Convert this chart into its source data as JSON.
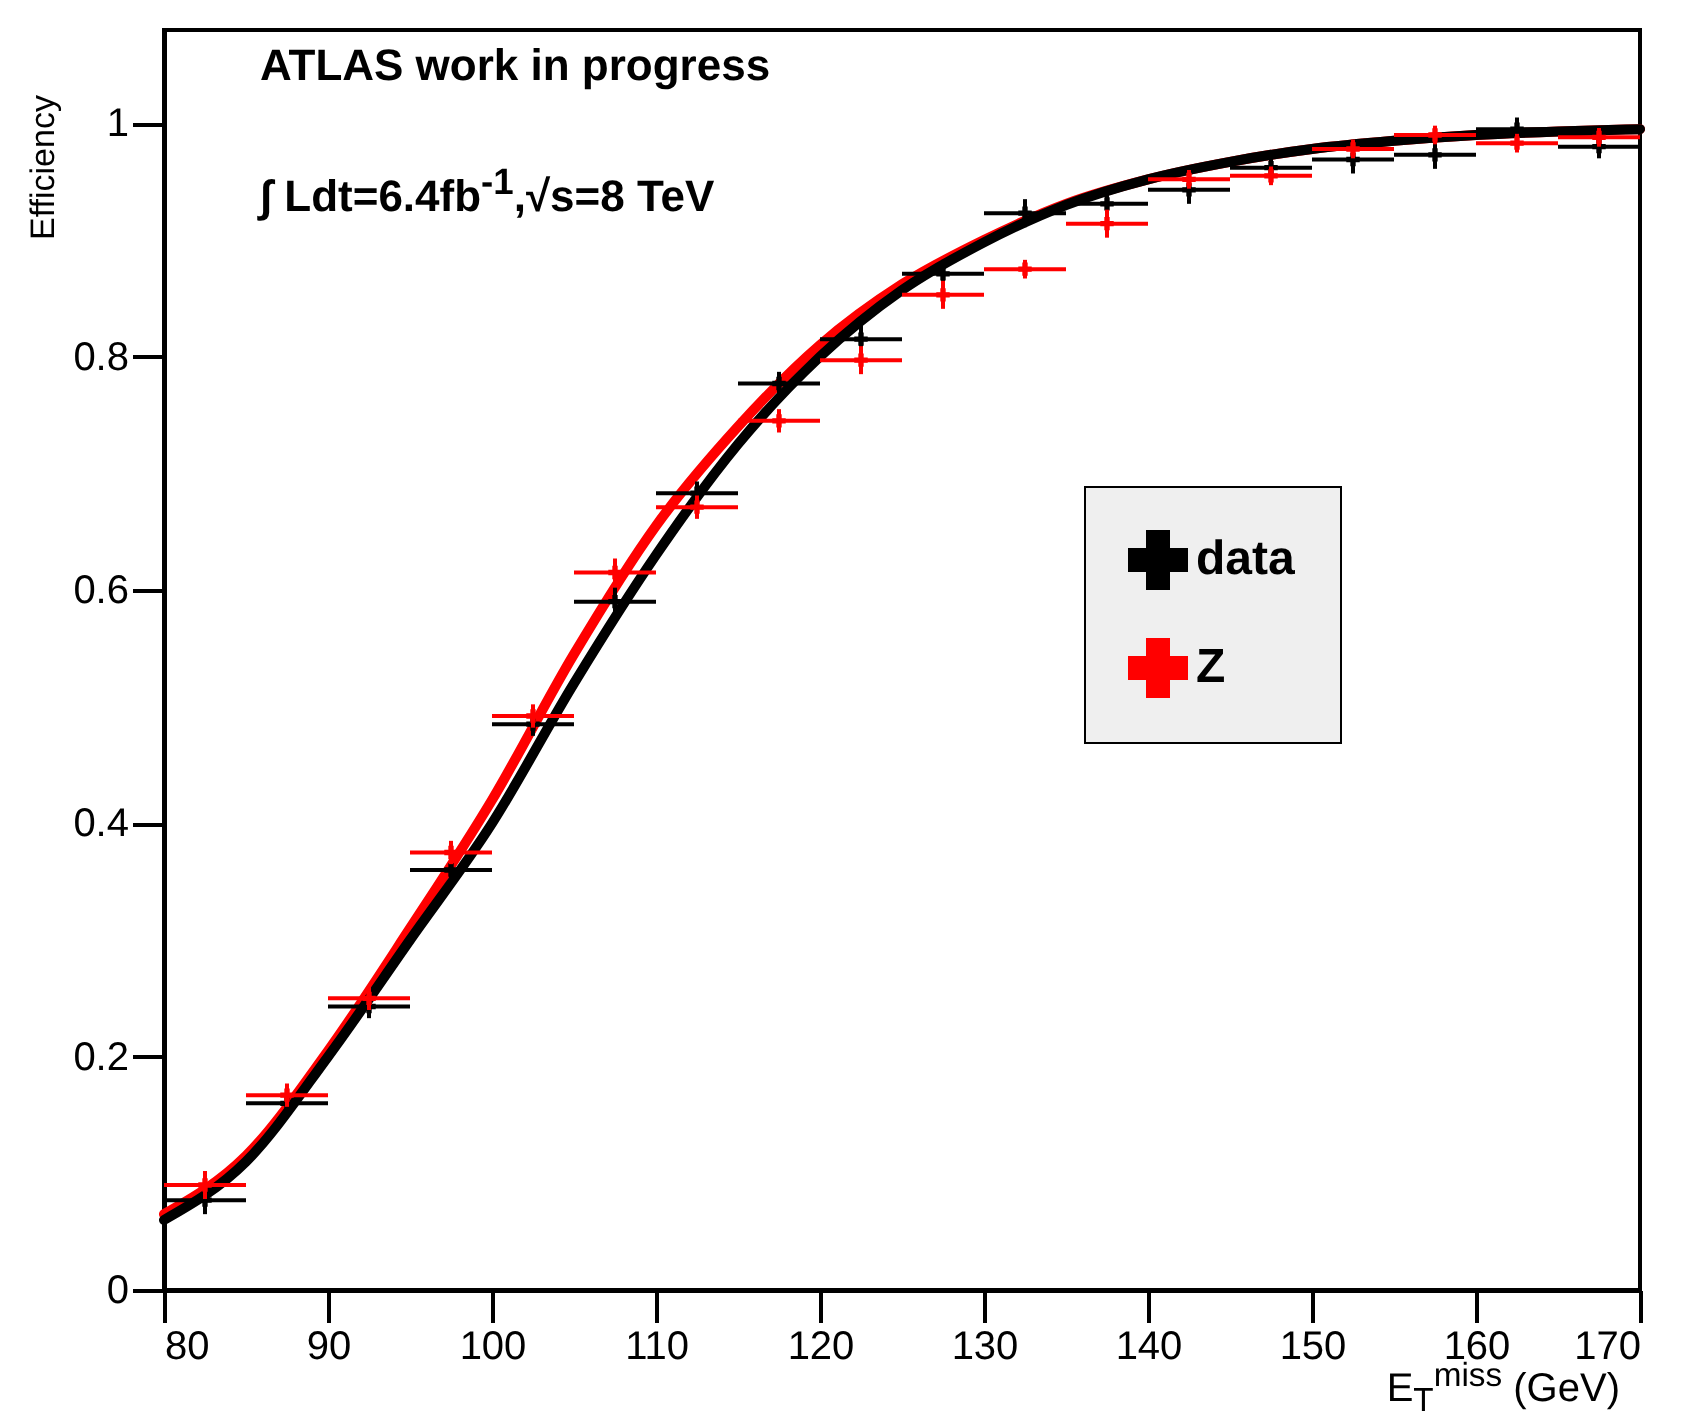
{
  "chart_data": {
    "type": "scatter",
    "xlabel": "E$_{T}$$^{miss}$ (GeV)",
    "ylabel": "Efficiency",
    "annotations": [
      "ATLAS work in progress",
      "∫ Ldt=6.4fb$^{-1}$,√s=8 TeV"
    ],
    "xlim": [
      80,
      170
    ],
    "ylim": [
      0,
      1.08
    ],
    "xticks": [
      80,
      90,
      100,
      110,
      120,
      130,
      140,
      150,
      160,
      170
    ],
    "yticks": [
      0,
      0.2,
      0.4,
      0.6,
      0.8,
      1
    ],
    "grid": false,
    "legend": "right",
    "x": [
      82.5,
      87.5,
      92.5,
      97.5,
      102.5,
      107.5,
      112.5,
      117.5,
      122.5,
      127.5,
      132.5,
      137.5,
      142.5,
      147.5,
      152.5,
      157.5,
      162.5,
      167.5
    ],
    "series": [
      {
        "name": "data",
        "color": "#000000",
        "marker": "cross",
        "values": [
          0.077,
          0.16,
          0.243,
          0.36,
          0.485,
          0.59,
          0.683,
          0.777,
          0.815,
          0.871,
          0.923,
          0.931,
          0.943,
          0.962,
          0.969,
          0.973,
          0.995,
          0.98
        ],
        "errors": [
          0.012,
          0.01,
          0.01,
          0.01,
          0.01,
          0.012,
          0.01,
          0.01,
          0.012,
          0.012,
          0.012,
          0.012,
          0.012,
          0.012,
          0.012,
          0.012,
          0.01,
          0.01
        ],
        "xerrors": [
          2.5,
          2.5,
          2.5,
          2.5,
          2.5,
          2.5,
          2.5,
          2.5,
          2.5,
          2.5,
          2.5,
          2.5,
          2.5,
          2.5,
          2.5,
          2.5,
          2.5,
          2.5
        ]
      },
      {
        "name": "Z",
        "color": "#ff0000",
        "marker": "cross",
        "values": [
          0.09,
          0.167,
          0.25,
          0.375,
          0.492,
          0.615,
          0.671,
          0.745,
          0.797,
          0.853,
          0.875,
          0.914,
          0.952,
          0.955,
          0.978,
          0.99,
          0.983,
          0.988
        ],
        "errors": [
          0.012,
          0.01,
          0.01,
          0.01,
          0.01,
          0.012,
          0.01,
          0.01,
          0.012,
          0.012,
          0.008,
          0.012,
          0.008,
          0.008,
          0.008,
          0.008,
          0.008,
          0.008
        ],
        "xerrors": [
          2.5,
          2.5,
          2.5,
          2.5,
          2.5,
          2.5,
          2.5,
          2.5,
          2.5,
          2.5,
          2.5,
          2.5,
          2.5,
          2.5,
          2.5,
          2.5,
          2.5,
          2.5
        ]
      },
      {
        "type": "line",
        "color": "#000000",
        "x": [
          80,
          85,
          90,
          95,
          100,
          105,
          110,
          115,
          120,
          125,
          130,
          135,
          140,
          145,
          150,
          155,
          160,
          165,
          170
        ],
        "values": [
          0.06,
          0.11,
          0.2,
          0.3,
          0.4,
          0.52,
          0.63,
          0.725,
          0.8,
          0.857,
          0.898,
          0.93,
          0.952,
          0.967,
          0.978,
          0.985,
          0.99,
          0.993,
          0.995
        ]
      },
      {
        "type": "line",
        "color": "#ff0000",
        "x": [
          80,
          85,
          90,
          95,
          100,
          105,
          110,
          115,
          120,
          125,
          130,
          135,
          140,
          145,
          150,
          155,
          160,
          165,
          170
        ],
        "values": [
          0.065,
          0.115,
          0.205,
          0.31,
          0.42,
          0.545,
          0.655,
          0.74,
          0.81,
          0.862,
          0.9,
          0.931,
          0.952,
          0.967,
          0.978,
          0.985,
          0.99,
          0.993,
          0.995
        ]
      }
    ]
  }
}
